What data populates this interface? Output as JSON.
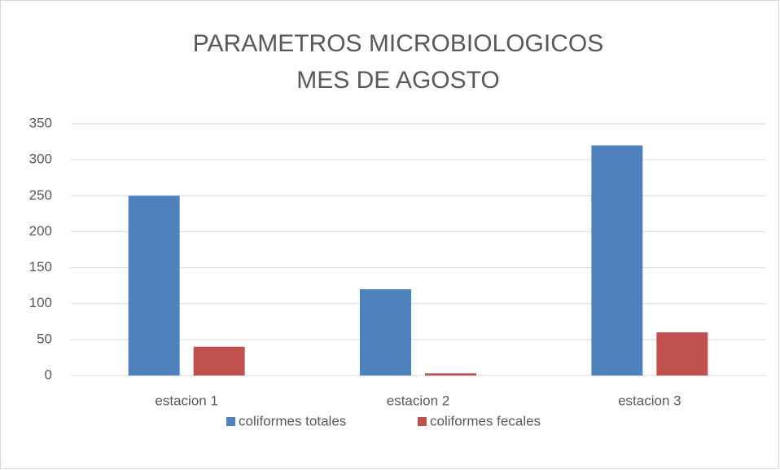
{
  "chart_data": {
    "type": "bar",
    "title": [
      "PARAMETROS MICROBIOLOGICOS",
      "MES DE AGOSTO"
    ],
    "categories": [
      "estacion 1",
      "estacion 2",
      "estacion 3"
    ],
    "series": [
      {
        "name": "coliformes totales",
        "color": "#4f81bd",
        "values": [
          250,
          120,
          320
        ]
      },
      {
        "name": "coliformes fecales",
        "color": "#c0504d",
        "values": [
          40,
          3,
          60
        ]
      }
    ],
    "ylim": [
      0,
      350
    ],
    "yticks": [
      0,
      50,
      100,
      150,
      200,
      250,
      300,
      350
    ],
    "grid": true,
    "legend": "bottom"
  }
}
